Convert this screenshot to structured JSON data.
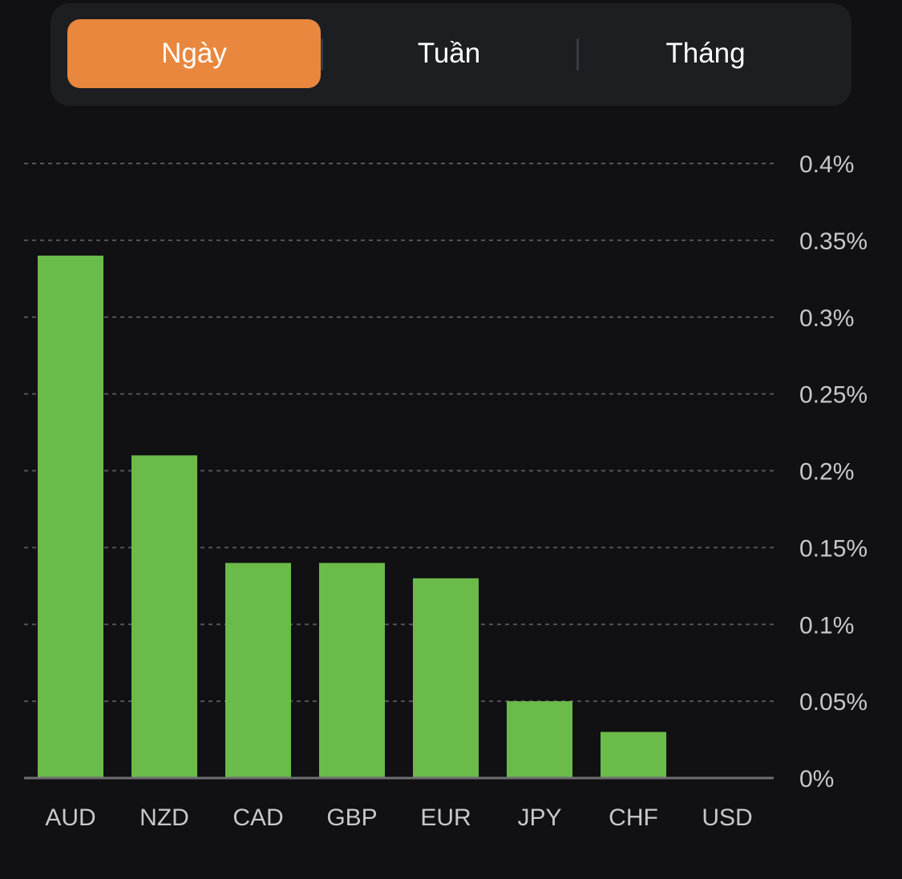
{
  "tabs": [
    {
      "label": "Ngày",
      "active": true
    },
    {
      "label": "Tuần",
      "active": false
    },
    {
      "label": "Tháng",
      "active": false
    }
  ],
  "colors": {
    "accent": "#e8873d",
    "bar": "#6bbb4a",
    "background": "#111114",
    "grid": "#555559",
    "text": "#c8c8cc"
  },
  "chart_data": {
    "type": "bar",
    "categories": [
      "AUD",
      "NZD",
      "CAD",
      "GBP",
      "EUR",
      "JPY",
      "CHF",
      "USD"
    ],
    "values": [
      0.34,
      0.21,
      0.14,
      0.14,
      0.13,
      0.05,
      0.03,
      0
    ],
    "ylim": [
      0,
      0.4
    ],
    "yticks": [
      0,
      0.05,
      0.1,
      0.15,
      0.2,
      0.25,
      0.3,
      0.35,
      0.4
    ],
    "ytick_labels": [
      "0%",
      "0.05%",
      "0.1%",
      "0.15%",
      "0.2%",
      "0.25%",
      "0.3%",
      "0.35%",
      "0.4%"
    ],
    "y_axis_position": "right",
    "grid": true,
    "title": "",
    "xlabel": "",
    "ylabel": ""
  }
}
